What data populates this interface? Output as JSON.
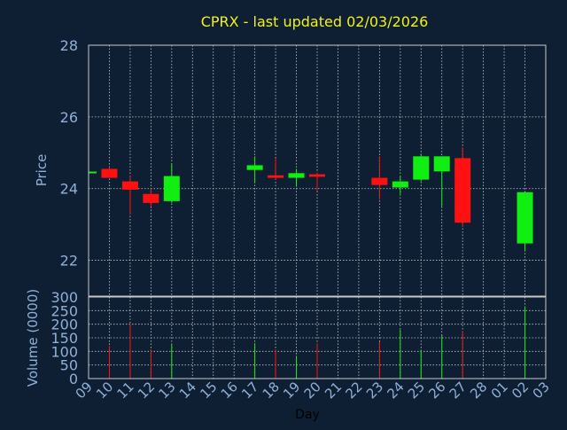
{
  "colors": {
    "background": "#0f1f33",
    "title": "#f2f21a",
    "axis_text": "#8fb0d8",
    "frame": "#c8c8c8",
    "grid": "#c8c8c8",
    "up": "#11ee11",
    "down": "#ff1111"
  },
  "chart_data": [
    {
      "type": "candlestick",
      "title": "CPRX - last updated 02/03/2026",
      "ylabel": "Price",
      "ylim": [
        21,
        28
      ],
      "yticks": [
        22,
        24,
        26,
        28
      ],
      "grid": true,
      "x_tick_labels": [
        "09",
        "10",
        "11",
        "12",
        "13",
        "14",
        "15",
        "16",
        "17",
        "18",
        "19",
        "20",
        "21",
        "22",
        "23",
        "24",
        "25",
        "26",
        "27",
        "28",
        "01",
        "02",
        "03"
      ],
      "candles": [
        {
          "day": 0,
          "open": 24.45,
          "close": 24.45,
          "high": 24.45,
          "low": 24.45
        },
        {
          "day": 1,
          "open": 24.55,
          "close": 24.3,
          "high": 24.6,
          "low": 24.3
        },
        {
          "day": 2,
          "open": 24.2,
          "close": 23.97,
          "high": 24.35,
          "low": 23.3
        },
        {
          "day": 3,
          "open": 23.85,
          "close": 23.6,
          "high": 24.0,
          "low": 23.5
        },
        {
          "day": 4,
          "open": 23.65,
          "close": 24.35,
          "high": 24.7,
          "low": 23.6
        },
        {
          "day": 8,
          "open": 24.52,
          "close": 24.65,
          "high": 24.9,
          "low": 24.15
        },
        {
          "day": 9,
          "open": 24.37,
          "close": 24.3,
          "high": 24.85,
          "low": 24.25
        },
        {
          "day": 10,
          "open": 24.3,
          "close": 24.43,
          "high": 24.55,
          "low": 24.05
        },
        {
          "day": 11,
          "open": 24.4,
          "close": 24.33,
          "high": 24.45,
          "low": 23.95
        },
        {
          "day": 14,
          "open": 24.3,
          "close": 24.1,
          "high": 24.9,
          "low": 23.7
        },
        {
          "day": 15,
          "open": 24.03,
          "close": 24.2,
          "high": 24.35,
          "low": 23.85
        },
        {
          "day": 16,
          "open": 24.25,
          "close": 24.9,
          "high": 24.95,
          "low": 24.2
        },
        {
          "day": 17,
          "open": 24.48,
          "close": 24.9,
          "high": 24.9,
          "low": 23.5
        },
        {
          "day": 18,
          "open": 24.85,
          "close": 23.05,
          "high": 25.15,
          "low": 22.95
        },
        {
          "day": 21,
          "open": 22.47,
          "close": 23.9,
          "high": 23.9,
          "low": 22.25
        }
      ],
      "volume": {
        "ylabel": "Volume (0000)",
        "xlabel": "Day",
        "ylim": [
          0,
          300
        ],
        "yticks": [
          0,
          50,
          100,
          150,
          200,
          250,
          300
        ],
        "bars": [
          {
            "day": 1,
            "value": 120,
            "dir": "down"
          },
          {
            "day": 2,
            "value": 200,
            "dir": "down"
          },
          {
            "day": 3,
            "value": 105,
            "dir": "down"
          },
          {
            "day": 4,
            "value": 125,
            "dir": "up"
          },
          {
            "day": 8,
            "value": 130,
            "dir": "up"
          },
          {
            "day": 9,
            "value": 105,
            "dir": "down"
          },
          {
            "day": 10,
            "value": 80,
            "dir": "up"
          },
          {
            "day": 11,
            "value": 130,
            "dir": "down"
          },
          {
            "day": 14,
            "value": 135,
            "dir": "down"
          },
          {
            "day": 15,
            "value": 180,
            "dir": "up"
          },
          {
            "day": 16,
            "value": 105,
            "dir": "up"
          },
          {
            "day": 17,
            "value": 160,
            "dir": "up"
          },
          {
            "day": 18,
            "value": 175,
            "dir": "down"
          },
          {
            "day": 21,
            "value": 265,
            "dir": "up"
          }
        ]
      }
    }
  ]
}
